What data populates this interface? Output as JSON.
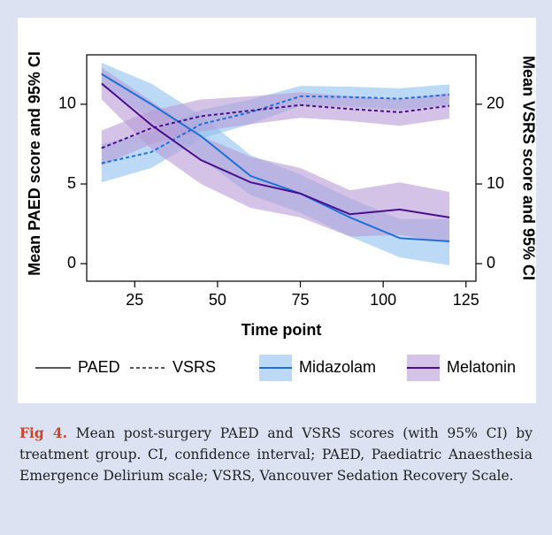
{
  "chart_data": {
    "type": "line_band",
    "xlabel": "Time point",
    "ylabel": "Mean PAED score and 95% CI",
    "y2label": "Mean VSRS score and 95% CI",
    "x": [
      15,
      30,
      45,
      60,
      75,
      90,
      105,
      120
    ],
    "xlim": [
      10.5,
      128
    ],
    "xticks": [
      25,
      50,
      75,
      100,
      125
    ],
    "ylim": [
      -1.1,
      13.1
    ],
    "yticks": [
      0,
      5,
      10
    ],
    "y2lim": [
      -2.2,
      26.2
    ],
    "y2ticks": [
      0,
      10,
      20
    ],
    "measures": [
      {
        "name": "PAED",
        "dash": "solid",
        "axis": "y"
      },
      {
        "name": "VSRS",
        "dash": "dashed",
        "axis": "y2"
      }
    ],
    "groups": [
      {
        "name": "Midazolam",
        "color": "#1f6fd8",
        "band_color": "#8fc0f0",
        "series": [
          {
            "values": [
              11.9,
              10.0,
              8.0,
              5.5,
              4.4,
              2.9,
              1.6,
              1.4
            ],
            "lower": [
              11.2,
              9.0,
              6.6,
              4.3,
              3.2,
              1.7,
              0.4,
              -0.1
            ],
            "upper": [
              12.6,
              11.3,
              9.3,
              6.8,
              5.6,
              4.1,
              2.8,
              2.8
            ]
          },
          {
            "values": [
              12.6,
              14.0,
              17.5,
              19.0,
              21.0,
              20.9,
              20.7,
              21.2
            ],
            "lower": [
              10.2,
              12.0,
              15.7,
              17.5,
              19.8,
              19.7,
              19.3,
              19.9
            ],
            "upper": [
              15.0,
              16.5,
              19.3,
              20.6,
              22.3,
              22.2,
              22.0,
              22.5
            ]
          }
        ]
      },
      {
        "name": "Melatonin",
        "color": "#4a0f8c",
        "band_color": "#b89bd6",
        "series": [
          {
            "values": [
              11.3,
              8.7,
              6.5,
              5.1,
              4.4,
              3.1,
              3.4,
              2.9
            ],
            "lower": [
              10.3,
              7.2,
              5.0,
              3.5,
              2.9,
              1.7,
              1.8,
              1.3
            ],
            "upper": [
              12.3,
              10.2,
              8.0,
              6.7,
              6.0,
              4.6,
              5.1,
              4.5
            ]
          },
          {
            "values": [
              14.5,
              17.0,
              18.5,
              19.2,
              19.9,
              19.4,
              19.0,
              19.8
            ],
            "lower": [
              12.3,
              15.0,
              16.6,
              17.5,
              18.3,
              17.9,
              17.3,
              18.2
            ],
            "upper": [
              16.7,
              19.2,
              20.6,
              21.0,
              21.5,
              21.0,
              20.6,
              21.4
            ]
          }
        ]
      }
    ]
  },
  "caption": {
    "label": "Fig 4.",
    "text": "Mean post-surgery PAED and VSRS scores (with 95% CI) by treatment group. CI, confidence interval; PAED, Paediatric Anaesthesia Emergence Delirium scale; VSRS, Vancouver Sedation Recovery Scale."
  }
}
